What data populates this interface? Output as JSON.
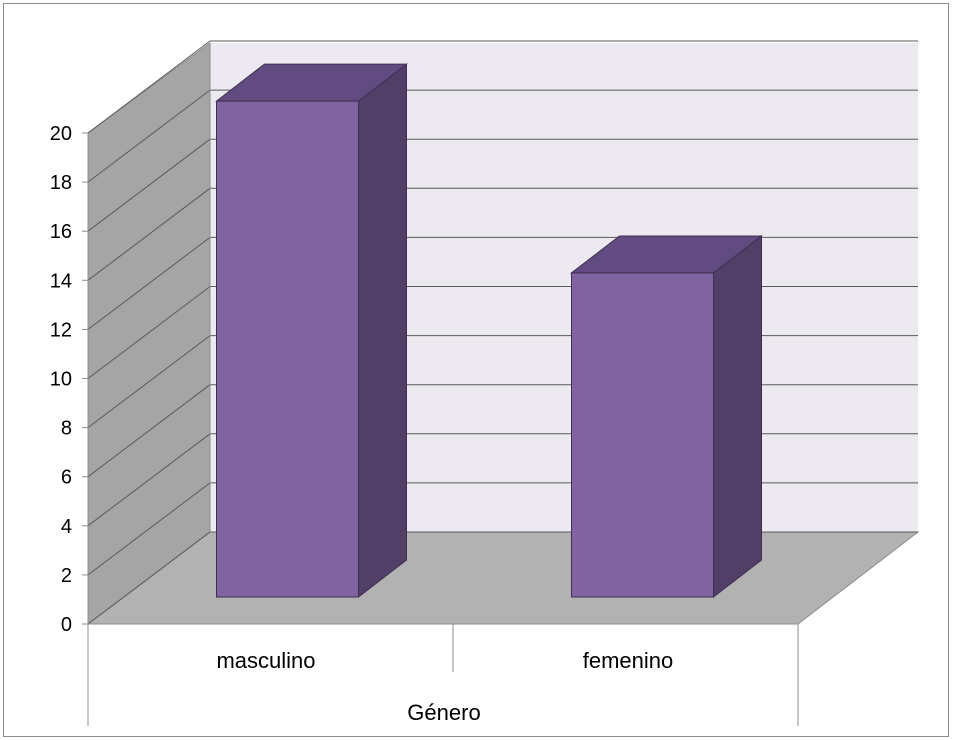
{
  "chart_data": {
    "type": "bar",
    "categories": [
      "masculino",
      "femenino"
    ],
    "values": [
      20.2,
      13.2
    ],
    "xlabel": "Género",
    "ylabel": "",
    "ylim": [
      0,
      20
    ],
    "yticks": [
      "0",
      "2",
      "4",
      "6",
      "8",
      "10",
      "12",
      "14",
      "16",
      "18",
      "20"
    ],
    "grid": true,
    "legend": "none",
    "style": "3d-clustered-column",
    "colors": {
      "bar_front": "#8064a2",
      "bar_side": "#523f68",
      "bar_top": "#624b80",
      "back_wall": "#eceaf0",
      "side_wall": "#a5a5a5",
      "floor": "#b2b2b2"
    }
  }
}
